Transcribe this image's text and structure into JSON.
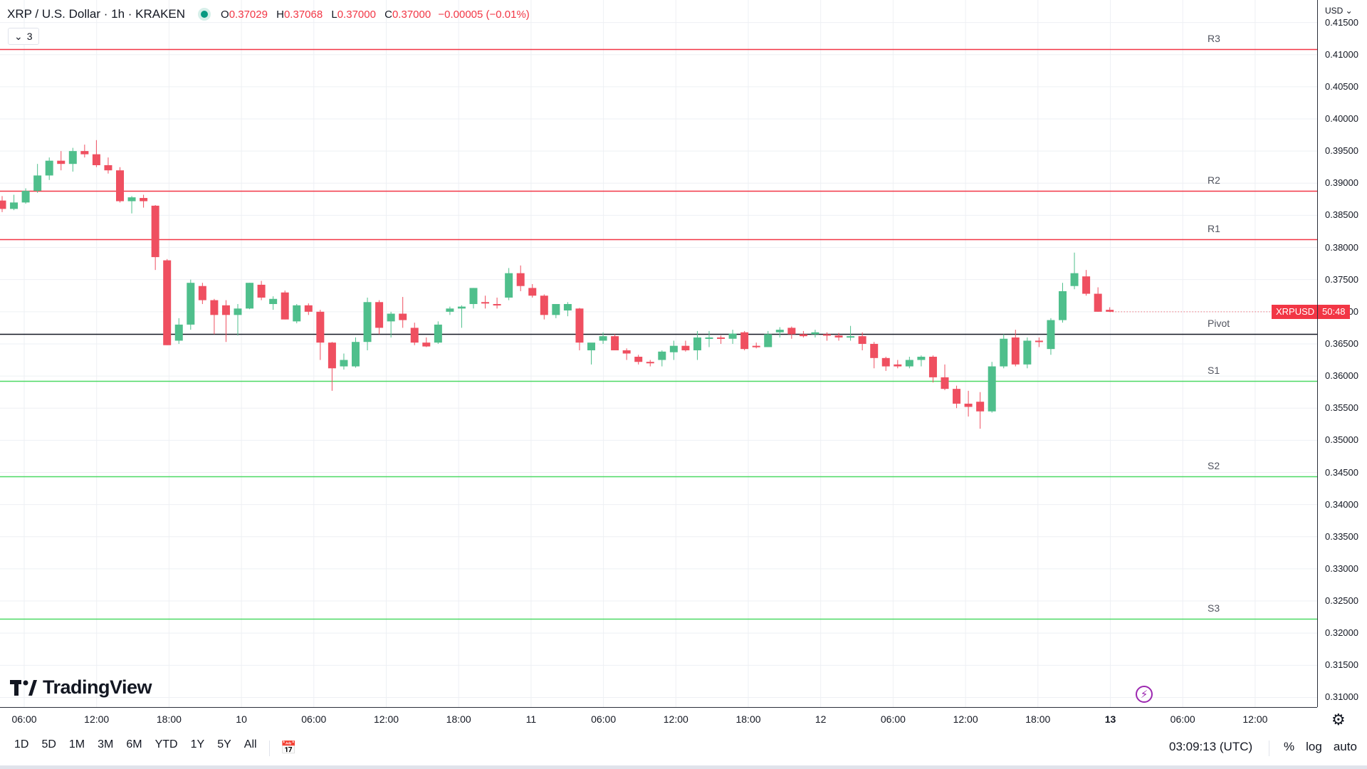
{
  "header": {
    "symbol_title": "XRP / U.S. Dollar · 1h · KRAKEN",
    "ohlc": {
      "o_label": "O",
      "o": "0.37029",
      "h_label": "H",
      "h": "0.37068",
      "l_label": "L",
      "l": "0.37000",
      "c_label": "C",
      "c": "0.37000",
      "change": "−0.00005 (−0.01%)"
    },
    "indicator_count": "3"
  },
  "logo_text": "TradingView",
  "currency": "USD",
  "price_axis": {
    "ticks": [
      "0.41500",
      "0.41000",
      "0.40500",
      "0.40000",
      "0.39500",
      "0.39000",
      "0.38500",
      "0.38000",
      "0.37500",
      "0.37000",
      "0.36500",
      "0.36000",
      "0.35500",
      "0.35000",
      "0.34500",
      "0.34000",
      "0.33500",
      "0.33000",
      "0.32500",
      "0.32000",
      "0.31500",
      "0.31000"
    ]
  },
  "last_price": {
    "symbol": "XRPUSD",
    "countdown": "50:48",
    "color": "#f23645"
  },
  "levels": [
    {
      "label": "R3",
      "price": 0.4109,
      "color": "#f23645"
    },
    {
      "label": "R2",
      "price": 0.3888,
      "color": "#f23645"
    },
    {
      "label": "R1",
      "price": 0.3813,
      "color": "#f23645"
    },
    {
      "label": "Pivot",
      "price": 0.3666,
      "color": "#131722"
    },
    {
      "label": "S1",
      "price": 0.3592,
      "color": "#4cd964"
    },
    {
      "label": "S2",
      "price": 0.3444,
      "color": "#4cd964"
    },
    {
      "label": "S3",
      "price": 0.3222,
      "color": "#4cd964"
    }
  ],
  "time_axis": {
    "labels": [
      {
        "text": "06:00",
        "bold": false
      },
      {
        "text": "12:00",
        "bold": false
      },
      {
        "text": "18:00",
        "bold": false
      },
      {
        "text": "10",
        "bold": false
      },
      {
        "text": "06:00",
        "bold": false
      },
      {
        "text": "12:00",
        "bold": false
      },
      {
        "text": "18:00",
        "bold": false
      },
      {
        "text": "11",
        "bold": false
      },
      {
        "text": "06:00",
        "bold": false
      },
      {
        "text": "12:00",
        "bold": false
      },
      {
        "text": "18:00",
        "bold": false
      },
      {
        "text": "12",
        "bold": false
      },
      {
        "text": "06:00",
        "bold": false
      },
      {
        "text": "12:00",
        "bold": false
      },
      {
        "text": "18:00",
        "bold": false
      },
      {
        "text": "13",
        "bold": true
      },
      {
        "text": "06:00",
        "bold": false
      },
      {
        "text": "12:00",
        "bold": false
      }
    ]
  },
  "toolbar": {
    "periods": [
      "1D",
      "5D",
      "1M",
      "3M",
      "6M",
      "YTD",
      "1Y",
      "5Y",
      "All"
    ],
    "clock": "03:09:13 (UTC)",
    "options": [
      "%",
      "log",
      "auto"
    ]
  },
  "icons": {
    "status": "market-open-dot",
    "settings": "gear-icon",
    "compare": "calendar-range-icon",
    "alert": "lightning-icon"
  },
  "colors": {
    "up": "#4fbf8c",
    "down": "#ef4f60",
    "grid": "#eef0f4"
  },
  "chart_data": {
    "type": "candlestick",
    "title": "XRP / U.S. Dollar · 1h · KRAKEN",
    "interval": "1h",
    "ylim": [
      0.3085,
      0.4185
    ],
    "grid": true,
    "candles": [
      {
        "o": 0.3873,
        "h": 0.388,
        "l": 0.3855,
        "c": 0.386
      },
      {
        "o": 0.386,
        "h": 0.3882,
        "l": 0.3858,
        "c": 0.387
      },
      {
        "o": 0.387,
        "h": 0.3892,
        "l": 0.3868,
        "c": 0.3888
      },
      {
        "o": 0.3888,
        "h": 0.393,
        "l": 0.3885,
        "c": 0.3912
      },
      {
        "o": 0.3912,
        "h": 0.394,
        "l": 0.3905,
        "c": 0.3935
      },
      {
        "o": 0.3935,
        "h": 0.395,
        "l": 0.392,
        "c": 0.393
      },
      {
        "o": 0.393,
        "h": 0.3955,
        "l": 0.3918,
        "c": 0.395
      },
      {
        "o": 0.395,
        "h": 0.396,
        "l": 0.394,
        "c": 0.3945
      },
      {
        "o": 0.3945,
        "h": 0.3967,
        "l": 0.3925,
        "c": 0.3928
      },
      {
        "o": 0.3928,
        "h": 0.394,
        "l": 0.3915,
        "c": 0.392
      },
      {
        "o": 0.392,
        "h": 0.3925,
        "l": 0.387,
        "c": 0.3872
      },
      {
        "o": 0.3872,
        "h": 0.388,
        "l": 0.3853,
        "c": 0.3878
      },
      {
        "o": 0.3877,
        "h": 0.3882,
        "l": 0.3862,
        "c": 0.3872
      },
      {
        "o": 0.3865,
        "h": 0.3866,
        "l": 0.3765,
        "c": 0.3785
      },
      {
        "o": 0.378,
        "h": 0.3782,
        "l": 0.3648,
        "c": 0.3648
      },
      {
        "o": 0.3655,
        "h": 0.369,
        "l": 0.365,
        "c": 0.368
      },
      {
        "o": 0.368,
        "h": 0.375,
        "l": 0.3672,
        "c": 0.3745
      },
      {
        "o": 0.374,
        "h": 0.3745,
        "l": 0.3712,
        "c": 0.3718
      },
      {
        "o": 0.3718,
        "h": 0.372,
        "l": 0.3665,
        "c": 0.3695
      },
      {
        "o": 0.371,
        "h": 0.3718,
        "l": 0.3653,
        "c": 0.3695
      },
      {
        "o": 0.3695,
        "h": 0.3712,
        "l": 0.3663,
        "c": 0.3705
      },
      {
        "o": 0.3705,
        "h": 0.3745,
        "l": 0.3704,
        "c": 0.3745
      },
      {
        "o": 0.3742,
        "h": 0.3748,
        "l": 0.3718,
        "c": 0.3722
      },
      {
        "o": 0.3712,
        "h": 0.3724,
        "l": 0.3703,
        "c": 0.372
      },
      {
        "o": 0.373,
        "h": 0.3733,
        "l": 0.3688,
        "c": 0.3688
      },
      {
        "o": 0.3685,
        "h": 0.3712,
        "l": 0.3682,
        "c": 0.371
      },
      {
        "o": 0.371,
        "h": 0.3713,
        "l": 0.3695,
        "c": 0.37
      },
      {
        "o": 0.37,
        "h": 0.3703,
        "l": 0.3625,
        "c": 0.3652
      },
      {
        "o": 0.3652,
        "h": 0.3653,
        "l": 0.3577,
        "c": 0.3612
      },
      {
        "o": 0.3615,
        "h": 0.3635,
        "l": 0.361,
        "c": 0.3625
      },
      {
        "o": 0.3615,
        "h": 0.366,
        "l": 0.3613,
        "c": 0.3653
      },
      {
        "o": 0.3653,
        "h": 0.3722,
        "l": 0.364,
        "c": 0.3715
      },
      {
        "o": 0.3715,
        "h": 0.3718,
        "l": 0.3665,
        "c": 0.3675
      },
      {
        "o": 0.3685,
        "h": 0.37,
        "l": 0.366,
        "c": 0.3697
      },
      {
        "o": 0.3697,
        "h": 0.3723,
        "l": 0.3675,
        "c": 0.3687
      },
      {
        "o": 0.3675,
        "h": 0.3683,
        "l": 0.3648,
        "c": 0.3652
      },
      {
        "o": 0.3652,
        "h": 0.366,
        "l": 0.3645,
        "c": 0.3646
      },
      {
        "o": 0.3652,
        "h": 0.3685,
        "l": 0.365,
        "c": 0.368
      },
      {
        "o": 0.37,
        "h": 0.3708,
        "l": 0.3695,
        "c": 0.3705
      },
      {
        "o": 0.3705,
        "h": 0.371,
        "l": 0.3675,
        "c": 0.3708
      },
      {
        "o": 0.3712,
        "h": 0.3737,
        "l": 0.3705,
        "c": 0.3737
      },
      {
        "o": 0.3715,
        "h": 0.3725,
        "l": 0.3705,
        "c": 0.3713
      },
      {
        "o": 0.3712,
        "h": 0.3722,
        "l": 0.3705,
        "c": 0.371
      },
      {
        "o": 0.3722,
        "h": 0.3768,
        "l": 0.3718,
        "c": 0.376
      },
      {
        "o": 0.376,
        "h": 0.3772,
        "l": 0.3732,
        "c": 0.374
      },
      {
        "o": 0.3737,
        "h": 0.3743,
        "l": 0.3722,
        "c": 0.3725
      },
      {
        "o": 0.3725,
        "h": 0.3727,
        "l": 0.3688,
        "c": 0.3695
      },
      {
        "o": 0.3695,
        "h": 0.3712,
        "l": 0.369,
        "c": 0.3712
      },
      {
        "o": 0.3702,
        "h": 0.3715,
        "l": 0.3693,
        "c": 0.3712
      },
      {
        "o": 0.3705,
        "h": 0.3706,
        "l": 0.364,
        "c": 0.3652
      },
      {
        "o": 0.364,
        "h": 0.365,
        "l": 0.3618,
        "c": 0.3652
      },
      {
        "o": 0.3655,
        "h": 0.3668,
        "l": 0.365,
        "c": 0.3662
      },
      {
        "o": 0.3662,
        "h": 0.3665,
        "l": 0.364,
        "c": 0.364
      },
      {
        "o": 0.364,
        "h": 0.3643,
        "l": 0.3625,
        "c": 0.3635
      },
      {
        "o": 0.363,
        "h": 0.3633,
        "l": 0.3618,
        "c": 0.3622
      },
      {
        "o": 0.3622,
        "h": 0.3625,
        "l": 0.3615,
        "c": 0.362
      },
      {
        "o": 0.3625,
        "h": 0.364,
        "l": 0.3615,
        "c": 0.3638
      },
      {
        "o": 0.3637,
        "h": 0.3655,
        "l": 0.3625,
        "c": 0.3647
      },
      {
        "o": 0.3647,
        "h": 0.3655,
        "l": 0.3638,
        "c": 0.364
      },
      {
        "o": 0.364,
        "h": 0.367,
        "l": 0.3625,
        "c": 0.366
      },
      {
        "o": 0.366,
        "h": 0.367,
        "l": 0.3645,
        "c": 0.366
      },
      {
        "o": 0.366,
        "h": 0.3663,
        "l": 0.365,
        "c": 0.3659
      },
      {
        "o": 0.3658,
        "h": 0.3672,
        "l": 0.365,
        "c": 0.3666
      },
      {
        "o": 0.3668,
        "h": 0.367,
        "l": 0.364,
        "c": 0.3642
      },
      {
        "o": 0.3647,
        "h": 0.3652,
        "l": 0.3643,
        "c": 0.3645
      },
      {
        "o": 0.3645,
        "h": 0.367,
        "l": 0.3645,
        "c": 0.3665
      },
      {
        "o": 0.3668,
        "h": 0.3676,
        "l": 0.366,
        "c": 0.3672
      },
      {
        "o": 0.3675,
        "h": 0.3677,
        "l": 0.3658,
        "c": 0.3665
      },
      {
        "o": 0.3665,
        "h": 0.367,
        "l": 0.366,
        "c": 0.3662
      },
      {
        "o": 0.3665,
        "h": 0.3672,
        "l": 0.366,
        "c": 0.3668
      },
      {
        "o": 0.3665,
        "h": 0.3668,
        "l": 0.3655,
        "c": 0.3663
      },
      {
        "o": 0.3663,
        "h": 0.3667,
        "l": 0.3655,
        "c": 0.366
      },
      {
        "o": 0.3662,
        "h": 0.3678,
        "l": 0.3655,
        "c": 0.3662
      },
      {
        "o": 0.3662,
        "h": 0.3668,
        "l": 0.364,
        "c": 0.365
      },
      {
        "o": 0.365,
        "h": 0.3653,
        "l": 0.3612,
        "c": 0.3628
      },
      {
        "o": 0.3628,
        "h": 0.363,
        "l": 0.3608,
        "c": 0.3615
      },
      {
        "o": 0.3618,
        "h": 0.3625,
        "l": 0.3612,
        "c": 0.3615
      },
      {
        "o": 0.3615,
        "h": 0.363,
        "l": 0.3612,
        "c": 0.3625
      },
      {
        "o": 0.3625,
        "h": 0.3632,
        "l": 0.3615,
        "c": 0.363
      },
      {
        "o": 0.363,
        "h": 0.3632,
        "l": 0.359,
        "c": 0.3598
      },
      {
        "o": 0.3598,
        "h": 0.3618,
        "l": 0.3578,
        "c": 0.358
      },
      {
        "o": 0.358,
        "h": 0.3585,
        "l": 0.355,
        "c": 0.3557
      },
      {
        "o": 0.3557,
        "h": 0.3577,
        "l": 0.3537,
        "c": 0.3552
      },
      {
        "o": 0.356,
        "h": 0.3575,
        "l": 0.3518,
        "c": 0.3545
      },
      {
        "o": 0.3545,
        "h": 0.3622,
        "l": 0.3543,
        "c": 0.3615
      },
      {
        "o": 0.3615,
        "h": 0.3665,
        "l": 0.3612,
        "c": 0.3658
      },
      {
        "o": 0.366,
        "h": 0.3672,
        "l": 0.3615,
        "c": 0.3618
      },
      {
        "o": 0.3618,
        "h": 0.366,
        "l": 0.3612,
        "c": 0.3655
      },
      {
        "o": 0.3655,
        "h": 0.366,
        "l": 0.3645,
        "c": 0.3653
      },
      {
        "o": 0.3642,
        "h": 0.369,
        "l": 0.3633,
        "c": 0.3687
      },
      {
        "o": 0.3687,
        "h": 0.3745,
        "l": 0.3683,
        "c": 0.3732
      },
      {
        "o": 0.374,
        "h": 0.3792,
        "l": 0.3735,
        "c": 0.376
      },
      {
        "o": 0.3755,
        "h": 0.3765,
        "l": 0.3725,
        "c": 0.3728
      },
      {
        "o": 0.3728,
        "h": 0.3738,
        "l": 0.37,
        "c": 0.37
      },
      {
        "o": 0.3703,
        "h": 0.3707,
        "l": 0.37,
        "c": 0.37
      }
    ]
  }
}
